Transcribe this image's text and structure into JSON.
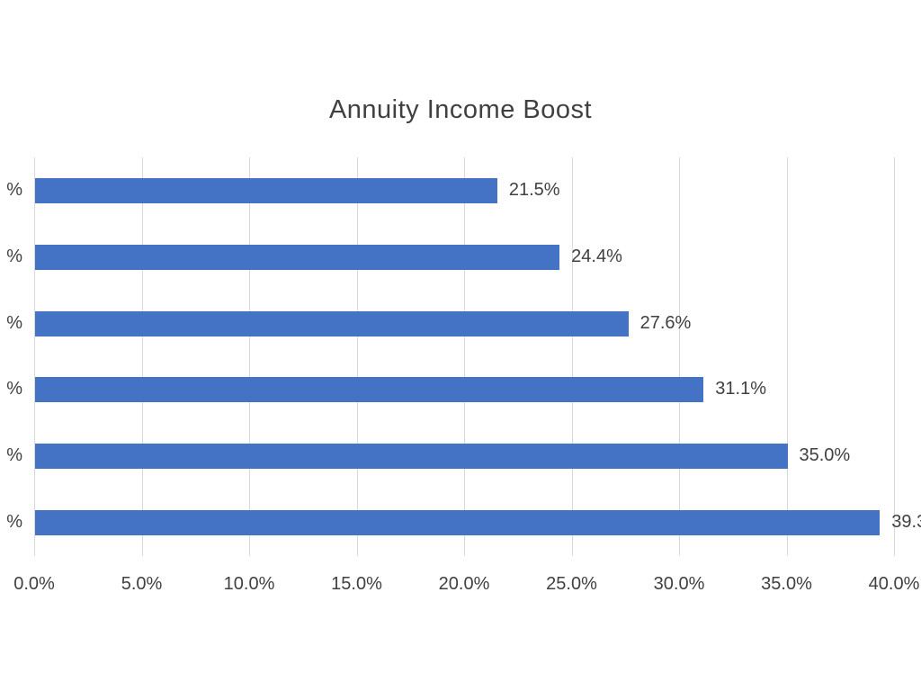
{
  "chart_data": {
    "type": "bar",
    "orientation": "horizontal",
    "title": "Annuity Income Boost",
    "categories_visible": [
      "%",
      "%",
      "%",
      "%",
      "%",
      "%"
    ],
    "values": [
      21.5,
      24.4,
      27.6,
      31.1,
      35.0,
      39.3
    ],
    "data_labels": [
      "21.5%",
      "24.4%",
      "27.6%",
      "31.1%",
      "35.0%",
      "39.3"
    ],
    "x_ticks": [
      "0.0%",
      "5.0%",
      "10.0%",
      "15.0%",
      "20.0%",
      "25.0%",
      "30.0%",
      "35.0%",
      "40.0%"
    ],
    "x_tick_values": [
      0,
      5,
      10,
      15,
      20,
      25,
      30,
      35,
      40
    ],
    "xlim": [
      0,
      40
    ],
    "grid": true,
    "legend": false,
    "colors": {
      "bar": "#4472c4",
      "gridline": "#d9d9d9",
      "text": "#404040"
    }
  }
}
